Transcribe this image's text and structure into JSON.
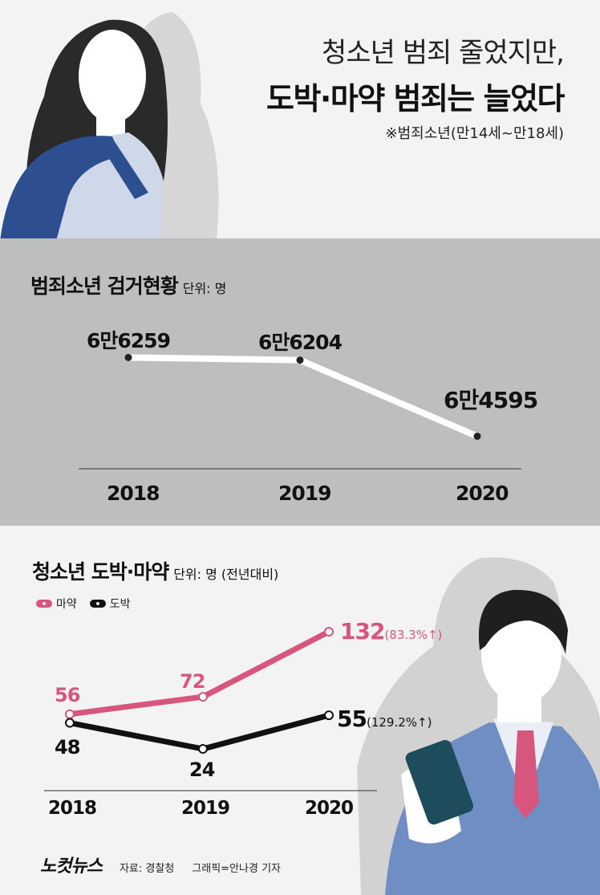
{
  "header": {
    "title_line1": "청소년 범죄 줄었지만,",
    "title_line2": "도박·마약 범죄는 늘었다",
    "note": "※범죄소년(만14세~만18세)"
  },
  "chart_data": [
    {
      "type": "line",
      "title": "범죄소년 검거현황",
      "unit": "단위: 명",
      "categories": [
        "2018",
        "2019",
        "2020"
      ],
      "values": [
        66259,
        66204,
        64595
      ],
      "value_labels": [
        "6만6259",
        "6만6204",
        "6만4595"
      ],
      "series_color": "#ffffff",
      "grid": false,
      "legend": "none"
    },
    {
      "type": "line",
      "title": "청소년 도박·마약",
      "unit": "단위: 명 (전년대비)",
      "categories": [
        "2018",
        "2019",
        "2020"
      ],
      "legend": "top-left",
      "series": [
        {
          "name": "마약",
          "values": [
            56,
            72,
            132
          ],
          "color": "#d6567d",
          "last_change": "(83.3%↑)"
        },
        {
          "name": "도박",
          "values": [
            48,
            24,
            55
          ],
          "color": "#111111",
          "last_change": "(129.2%↑)"
        }
      ]
    }
  ],
  "footer": {
    "logo": "노컷뉴스",
    "source": "자료: 경찰청",
    "credit": "그래픽=안나경 기자"
  }
}
